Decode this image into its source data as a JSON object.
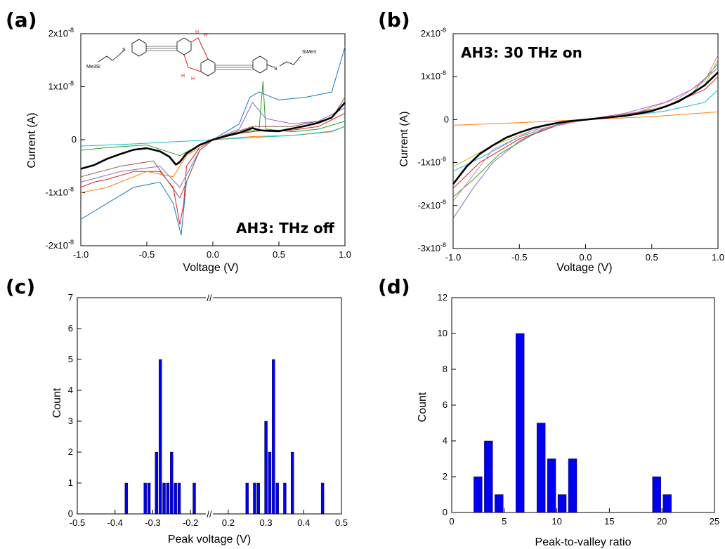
{
  "panel_labels": [
    "(a)",
    "(b)",
    "(c)",
    "(d)"
  ],
  "chart_data": [
    {
      "id": "a",
      "type": "line",
      "xlabel": "Voltage (V)",
      "ylabel": "Current (A)",
      "xlim": [
        -1.0,
        1.0
      ],
      "ylim": [
        -2e-08,
        2e-08
      ],
      "xticks": [
        "-1.0",
        "-0.5",
        "0.0",
        "0.5",
        "1.0"
      ],
      "yticks": [
        {
          "mantissa": "-2x10",
          "exp": "-8",
          "value": -2e-08
        },
        {
          "mantissa": "-1x10",
          "exp": "-8",
          "value": -1e-08
        },
        {
          "mantissa": "0",
          "exp": "",
          "value": 0
        },
        {
          "mantissa": "1x10",
          "exp": "-8",
          "value": 1e-08
        },
        {
          "mantissa": "2x10",
          "exp": "-8",
          "value": 2e-08
        }
      ],
      "annotation": "AH3: THz off",
      "inset_labels": {
        "left": "Me3Si",
        "right": "SiMe3",
        "sulfur": "S",
        "hydrogen": "H"
      },
      "series": [
        {
          "color": "#000000",
          "width": 2.6,
          "x": [
            -1.0,
            -0.9,
            -0.8,
            -0.7,
            -0.6,
            -0.5,
            -0.4,
            -0.33,
            -0.28,
            -0.25,
            -0.2,
            -0.1,
            0.0,
            0.1,
            0.2,
            0.3,
            0.35,
            0.4,
            0.5,
            0.6,
            0.7,
            0.8,
            0.9,
            1.0
          ],
          "y": [
            -5.5e-09,
            -4.8e-09,
            -3.6e-09,
            -2.7e-09,
            -1.9e-09,
            -1.6e-09,
            -2.2e-09,
            -3.2e-09,
            -4.7e-09,
            -4.2e-09,
            -2.6e-09,
            -1e-09,
            0,
            7e-10,
            1.3e-09,
            2.2e-09,
            1.8e-09,
            1.7e-09,
            1.6e-09,
            2.1e-09,
            2.6e-09,
            3.2e-09,
            4.2e-09,
            7e-09
          ]
        },
        {
          "color": "#e41a1c",
          "width": 1,
          "x": [
            -1.0,
            -0.9,
            -0.8,
            -0.6,
            -0.4,
            -0.3,
            -0.25,
            -0.22,
            -0.2,
            -0.1,
            0.0,
            0.2,
            0.4,
            0.6,
            0.8,
            1.0
          ],
          "y": [
            -9e-09,
            -8e-09,
            -7.5e-09,
            -6e-09,
            -6e-09,
            -9e-09,
            -1.6e-08,
            -1.2e-08,
            -5e-09,
            -1.5e-09,
            0,
            1.2e-09,
            1.8e-09,
            1.8e-09,
            2.5e-09,
            5e-09
          ]
        },
        {
          "color": "#1f77b4",
          "width": 1,
          "x": [
            -1.0,
            -0.8,
            -0.6,
            -0.4,
            -0.3,
            -0.24,
            -0.2,
            -0.1,
            0.0,
            0.2,
            0.28,
            0.35,
            0.5,
            0.7,
            0.9,
            1.0
          ],
          "y": [
            -1.5e-08,
            -1.2e-08,
            -9e-09,
            -8e-09,
            -1.2e-08,
            -1.8e-08,
            -8e-09,
            -2e-09,
            0,
            3e-09,
            8e-09,
            9e-09,
            7.5e-09,
            8e-09,
            9e-09,
            1.75e-08
          ]
        },
        {
          "color": "#2ca02c",
          "width": 1,
          "x": [
            -1.0,
            -0.8,
            -0.5,
            -0.25,
            -0.1,
            0.0,
            0.2,
            0.35,
            0.38,
            0.4,
            0.6,
            0.8,
            1.0
          ],
          "y": [
            -2e-09,
            -1.5e-09,
            -1e-09,
            -3e-09,
            -1e-09,
            0,
            1.2e-09,
            2e-09,
            1.1e-08,
            2e-09,
            1.5e-09,
            2e-09,
            3.5e-09
          ]
        },
        {
          "color": "#ff7f0e",
          "width": 1,
          "x": [
            -1.0,
            -0.8,
            -0.5,
            -0.3,
            -0.2,
            0.0,
            0.3,
            0.6,
            0.9,
            1.0
          ],
          "y": [
            -1e-08,
            -9e-09,
            -6e-09,
            -7e-09,
            -3e-09,
            0,
            6e-10,
            8e-10,
            1.5e-09,
            2.5e-09
          ]
        },
        {
          "color": "#9467bd",
          "width": 1,
          "x": [
            -1.0,
            -0.7,
            -0.4,
            -0.25,
            -0.1,
            0.0,
            0.2,
            0.3,
            0.4,
            0.6,
            0.8,
            1.0
          ],
          "y": [
            -8e-09,
            -6e-09,
            -5e-09,
            -9e-09,
            -2e-09,
            0,
            2e-09,
            7e-09,
            4e-09,
            3e-09,
            3.5e-09,
            6e-09
          ]
        },
        {
          "color": "#17becf",
          "width": 1,
          "x": [
            -1.0,
            -0.6,
            -0.3,
            0.0,
            0.3,
            0.6,
            0.9,
            1.0
          ],
          "y": [
            -1.2e-09,
            -8e-10,
            -4e-10,
            0,
            4e-10,
            8e-10,
            1.6e-09,
            2.5e-09
          ]
        },
        {
          "color": "#8c564b",
          "width": 1,
          "x": [
            -1.0,
            -0.7,
            -0.45,
            -0.25,
            -0.1,
            0.0,
            0.3,
            0.6,
            0.9,
            1.0
          ],
          "y": [
            -7e-09,
            -5e-09,
            -4e-09,
            -1.1e-08,
            -2e-09,
            0,
            2.5e-09,
            2.5e-09,
            4e-09,
            8e-09
          ]
        }
      ]
    },
    {
      "id": "b",
      "type": "line",
      "xlabel": "Voltage (V)",
      "ylabel": "Current (A)",
      "xlim": [
        -1.0,
        1.0
      ],
      "ylim": [
        -3e-08,
        2e-08
      ],
      "xticks": [
        "-1.0",
        "-0.5",
        "0.0",
        "0.5",
        "1.0"
      ],
      "yticks": [
        {
          "mantissa": "-3x10",
          "exp": "-8",
          "value": -3e-08
        },
        {
          "mantissa": "-2x10",
          "exp": "-8",
          "value": -2e-08
        },
        {
          "mantissa": "-1x10",
          "exp": "-8",
          "value": -1e-08
        },
        {
          "mantissa": "0",
          "exp": "",
          "value": 0
        },
        {
          "mantissa": "1x10",
          "exp": "-8",
          "value": 1e-08
        },
        {
          "mantissa": "2x10",
          "exp": "-8",
          "value": 2e-08
        }
      ],
      "annotation": "AH3: 30 THz on",
      "series": [
        {
          "color": "#000000",
          "width": 2.6,
          "x": [
            -1.0,
            -0.9,
            -0.8,
            -0.7,
            -0.6,
            -0.5,
            -0.4,
            -0.3,
            -0.2,
            -0.1,
            0.0,
            0.1,
            0.2,
            0.3,
            0.4,
            0.5,
            0.6,
            0.7,
            0.8,
            0.9,
            1.0
          ],
          "y": [
            -1.5e-08,
            -1.1e-08,
            -8e-09,
            -6e-09,
            -4.2e-09,
            -3e-09,
            -2e-09,
            -1.3e-09,
            -7e-10,
            -3e-10,
            0,
            3e-10,
            6e-10,
            9e-10,
            1.4e-09,
            2e-09,
            3e-09,
            4.2e-09,
            6e-09,
            8e-09,
            1.1e-08
          ]
        },
        {
          "color": "#ff7f0e",
          "width": 1,
          "x": [
            -1.0,
            -0.5,
            0.0,
            0.5,
            1.0
          ],
          "y": [
            -1.3e-09,
            -7e-10,
            0,
            7e-10,
            1.8e-09
          ]
        },
        {
          "color": "#9467bd",
          "width": 1,
          "x": [
            -1.0,
            -0.85,
            -0.7,
            -0.5,
            -0.3,
            0.0,
            0.3,
            0.6,
            0.8,
            1.0
          ],
          "y": [
            -2.3e-08,
            -1.6e-08,
            -1e-08,
            -5e-09,
            -2e-09,
            0,
            1.5e-09,
            4e-09,
            7e-09,
            1.2e-08
          ]
        },
        {
          "color": "#2ca02c",
          "width": 1,
          "x": [
            -1.0,
            -0.85,
            -0.65,
            -0.4,
            -0.2,
            0.0,
            0.3,
            0.6,
            0.8,
            1.0
          ],
          "y": [
            -1.8e-08,
            -1.4e-08,
            -8e-09,
            -3.5e-09,
            -1.2e-09,
            0,
            1.2e-09,
            3e-09,
            6e-09,
            1.3e-08
          ]
        },
        {
          "color": "#17becf",
          "width": 1,
          "x": [
            -1.0,
            -0.8,
            -0.5,
            -0.2,
            0.0,
            0.3,
            0.6,
            0.9,
            1.0
          ],
          "y": [
            -1.2e-08,
            -9e-09,
            -4e-09,
            -1e-09,
            0,
            8e-10,
            2e-09,
            4e-09,
            7e-09
          ]
        },
        {
          "color": "#e41a1c",
          "width": 1,
          "x": [
            -1.0,
            -0.8,
            -0.5,
            -0.2,
            0.0,
            0.3,
            0.6,
            0.9,
            1.0
          ],
          "y": [
            -1.6e-08,
            -1e-08,
            -4.5e-09,
            -1.2e-09,
            0,
            1e-09,
            3e-09,
            7e-09,
            1e-08
          ]
        },
        {
          "color": "#bcbd22",
          "width": 1,
          "x": [
            -1.0,
            -0.7,
            -0.4,
            0.0,
            0.4,
            0.7,
            0.9,
            1.0
          ],
          "y": [
            -1.1e-08,
            -6e-09,
            -2.5e-09,
            0,
            1.5e-09,
            4e-09,
            8e-09,
            1.4e-08
          ]
        },
        {
          "color": "#e377c2",
          "width": 1,
          "x": [
            -1.0,
            -0.7,
            -0.4,
            0.0,
            0.4,
            0.7,
            0.9,
            1.0
          ],
          "y": [
            -1.9e-08,
            -7e-09,
            -2.5e-09,
            0,
            1.8e-09,
            5e-09,
            9e-09,
            1.5e-08
          ]
        }
      ]
    },
    {
      "id": "c",
      "type": "bar",
      "xlabel": "Peak voltage (V)",
      "ylabel": "Count",
      "xticks": [
        "-0.5",
        "-0.4",
        "-0.3",
        "-0.2",
        "0.2",
        "0.3",
        "0.4",
        "0.5"
      ],
      "yticks": [
        "0",
        "1",
        "2",
        "3",
        "4",
        "5",
        "6",
        "7"
      ],
      "ylim": [
        0,
        7
      ],
      "axis_break": "//",
      "bar_color": "#0000ee",
      "bins": [
        {
          "x": -0.37,
          "count": 1
        },
        {
          "x": -0.32,
          "count": 1
        },
        {
          "x": -0.31,
          "count": 1
        },
        {
          "x": -0.29,
          "count": 2
        },
        {
          "x": -0.28,
          "count": 5
        },
        {
          "x": -0.27,
          "count": 1
        },
        {
          "x": -0.26,
          "count": 1
        },
        {
          "x": -0.25,
          "count": 2
        },
        {
          "x": -0.24,
          "count": 1
        },
        {
          "x": -0.23,
          "count": 1
        },
        {
          "x": -0.19,
          "count": 1
        },
        {
          "x": 0.25,
          "count": 1
        },
        {
          "x": 0.27,
          "count": 1
        },
        {
          "x": 0.28,
          "count": 1
        },
        {
          "x": 0.3,
          "count": 3
        },
        {
          "x": 0.31,
          "count": 2
        },
        {
          "x": 0.32,
          "count": 5
        },
        {
          "x": 0.33,
          "count": 1
        },
        {
          "x": 0.35,
          "count": 1
        },
        {
          "x": 0.37,
          "count": 2
        },
        {
          "x": 0.45,
          "count": 1
        }
      ]
    },
    {
      "id": "d",
      "type": "bar",
      "xlabel": "Peak-to-valley ratio",
      "ylabel": "Count",
      "xlim": [
        0,
        25
      ],
      "ylim": [
        0,
        12
      ],
      "xticks": [
        "0",
        "5",
        "10",
        "15",
        "20",
        "25"
      ],
      "yticks": [
        "0",
        "2",
        "4",
        "6",
        "8",
        "10",
        "12"
      ],
      "bar_color": "#0000ee",
      "bins": [
        {
          "x": 2.5,
          "count": 2
        },
        {
          "x": 3.5,
          "count": 4
        },
        {
          "x": 4.5,
          "count": 1
        },
        {
          "x": 6.5,
          "count": 10
        },
        {
          "x": 8.5,
          "count": 5
        },
        {
          "x": 9.5,
          "count": 3
        },
        {
          "x": 10.5,
          "count": 1
        },
        {
          "x": 11.5,
          "count": 3
        },
        {
          "x": 19.5,
          "count": 2
        },
        {
          "x": 20.5,
          "count": 1
        }
      ]
    }
  ]
}
